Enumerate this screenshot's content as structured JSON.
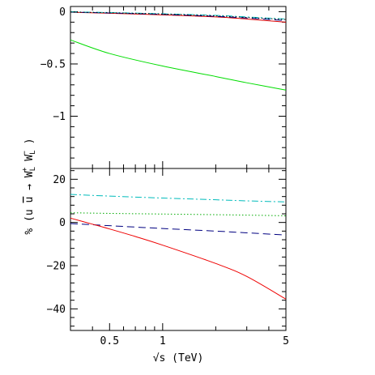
{
  "chart_data": [
    {
      "type": "line",
      "panel": "top",
      "x_scale": "log",
      "xlim": [
        0.3,
        5
      ],
      "ylim": [
        -1.5,
        0.05
      ],
      "x_ticks": [
        0.5,
        1,
        5
      ],
      "y_ticks": [
        0,
        -0.5,
        -1
      ],
      "y_tick_labels": [
        "0",
        "−0.5",
        "−1"
      ],
      "series": [
        {
          "color": "#00dd00",
          "style": "solid",
          "x": [
            0.3,
            0.5,
            1,
            2,
            3,
            5
          ],
          "y": [
            -0.27,
            -0.4,
            -0.52,
            -0.62,
            -0.68,
            -0.75
          ]
        },
        {
          "color": "#dd0000",
          "style": "solid",
          "x": [
            0.3,
            0.5,
            1,
            2,
            3,
            5
          ],
          "y": [
            -0.005,
            -0.015,
            -0.03,
            -0.05,
            -0.07,
            -0.1
          ]
        },
        {
          "color": "#000080",
          "style": "longdash",
          "x": [
            0.3,
            0.5,
            1,
            2,
            3,
            5
          ],
          "y": [
            -0.004,
            -0.012,
            -0.025,
            -0.045,
            -0.06,
            -0.085
          ]
        },
        {
          "color": "#00bbbb",
          "style": "dashdot",
          "x": [
            0.3,
            0.5,
            1,
            2,
            3,
            5
          ],
          "y": [
            -0.002,
            -0.008,
            -0.02,
            -0.035,
            -0.05,
            -0.07
          ]
        },
        {
          "color": "#000000",
          "style": "dotted",
          "x": [
            0.3,
            0.5,
            1,
            2,
            3,
            5
          ],
          "y": [
            -0.003,
            -0.01,
            -0.022,
            -0.04,
            -0.055,
            -0.075
          ]
        }
      ]
    },
    {
      "type": "line",
      "panel": "bottom",
      "x_scale": "log",
      "xlim": [
        0.3,
        5
      ],
      "ylim": [
        -50,
        25
      ],
      "x_ticks": [
        0.5,
        1,
        5
      ],
      "x_tick_labels": [
        "0.5",
        "1",
        "5"
      ],
      "y_ticks": [
        20,
        0,
        -20,
        -40
      ],
      "y_tick_labels": [
        "20",
        "0",
        "−20",
        "−40"
      ],
      "series": [
        {
          "color": "#00bbbb",
          "style": "dashdot",
          "x": [
            0.3,
            0.5,
            1,
            2,
            3,
            5
          ],
          "y": [
            13,
            12.2,
            11.3,
            10.5,
            10,
            9.5
          ]
        },
        {
          "color": "#00aa00",
          "style": "dotted",
          "x": [
            0.3,
            0.5,
            1,
            2,
            3,
            5
          ],
          "y": [
            4.5,
            4.2,
            3.9,
            3.6,
            3.4,
            3.1
          ]
        },
        {
          "color": "#000080",
          "style": "longdash",
          "x": [
            0.3,
            0.5,
            1,
            2,
            3,
            5
          ],
          "y": [
            -0.5,
            -1.5,
            -2.8,
            -4,
            -4.8,
            -5.8
          ]
        },
        {
          "color": "#ee0000",
          "style": "solid",
          "x": [
            0.3,
            0.4,
            0.5,
            0.7,
            1,
            2,
            3,
            5
          ],
          "y": [
            2,
            -0.8,
            -3,
            -6.5,
            -10.5,
            -19,
            -25,
            -35.5
          ]
        }
      ]
    }
  ],
  "labels": {
    "xlabel": "√s (TeV)",
    "ylabel_prefix": "% (u ",
    "ylabel_ubar": "u",
    "ylabel_arrow": " → W",
    "ylabel_sub_L": "L",
    "ylabel_sup_plus": "+",
    "ylabel_W2": " W",
    "ylabel_sup_minus": "−",
    "ylabel_suffix": " )"
  }
}
